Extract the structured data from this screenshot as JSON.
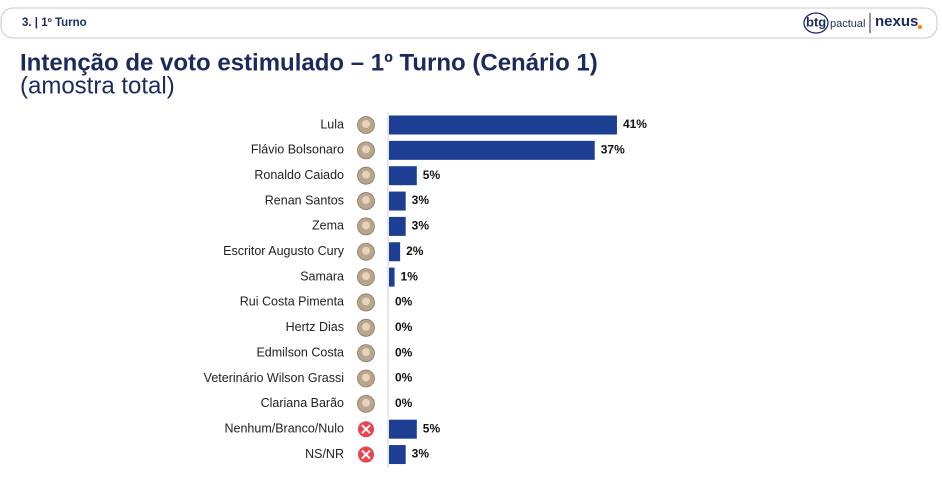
{
  "header": {
    "section": "3. | 1º Turno",
    "logo_btg": "btg",
    "logo_pactual": "pactual",
    "logo_nexus": "nexus"
  },
  "chart_data": {
    "type": "bar",
    "orientation": "horizontal",
    "title": "Intenção de voto estimulado – 1º Turno (Cenário 1)",
    "subtitle": "(amostra total)",
    "categories": [
      "Lula",
      "Flávio Bolsonaro",
      "Ronaldo Caiado",
      "Renan Santos",
      "Zema",
      "Escritor Augusto Cury",
      "Samara",
      "Rui Costa Pimenta",
      "Hertz Dias",
      "Edmilson Costa",
      "Veterinário Wilson Grassi",
      "Clariana Barão",
      "Nenhum/Branco/Nulo",
      "NS/NR"
    ],
    "values": [
      41,
      37,
      5,
      3,
      3,
      2,
      1,
      0,
      0,
      0,
      0,
      0,
      5,
      3
    ],
    "value_labels": [
      "41%",
      "37%",
      "5%",
      "3%",
      "3%",
      "2%",
      "1%",
      "0%",
      "0%",
      "0%",
      "0%",
      "0%",
      "5%",
      "3%"
    ],
    "color": "#1c3f94"
  }
}
